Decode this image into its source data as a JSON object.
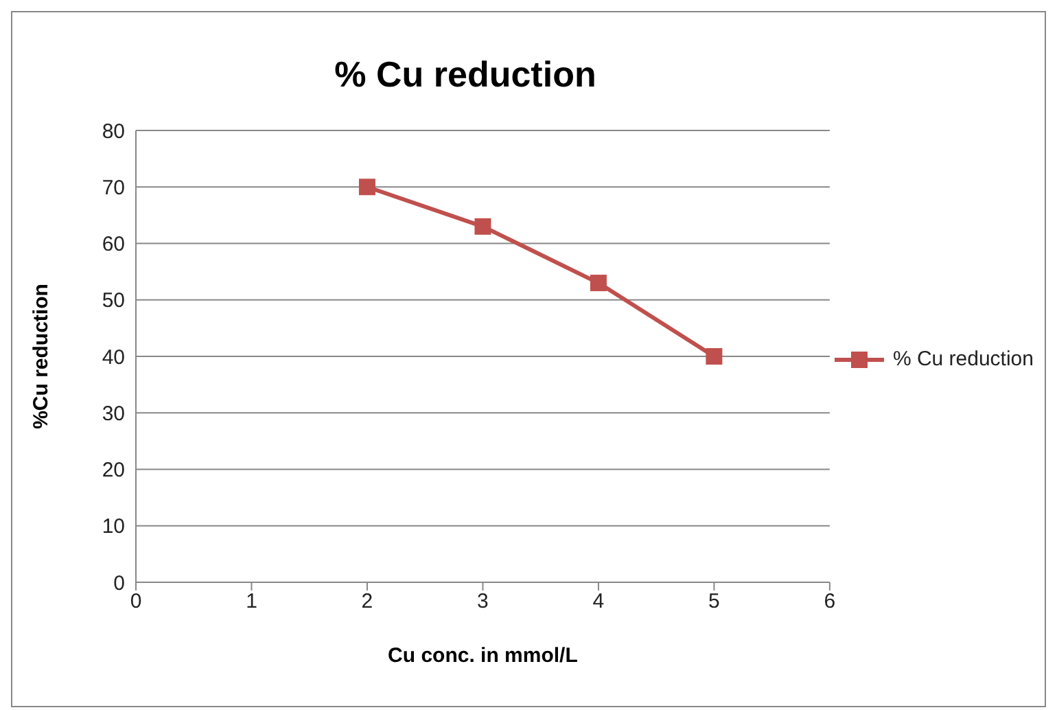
{
  "chart_data": {
    "type": "line",
    "title": "% Cu reduction",
    "xlabel": "Cu conc. in mmol/L",
    "ylabel": "%Cu reduction",
    "x": [
      2,
      3,
      4,
      5
    ],
    "series": [
      {
        "name": "% Cu reduction",
        "color": "#c0504d",
        "values": [
          70,
          63,
          53,
          40
        ]
      }
    ],
    "xlim": [
      0,
      6
    ],
    "xticks": [
      0,
      1,
      2,
      3,
      4,
      5,
      6
    ],
    "ylim": [
      0,
      80
    ],
    "yticks": [
      0,
      10,
      20,
      30,
      40,
      50,
      60,
      70,
      80
    ],
    "grid": "y",
    "legend": "right",
    "marker": "square",
    "line_style": "solid"
  }
}
